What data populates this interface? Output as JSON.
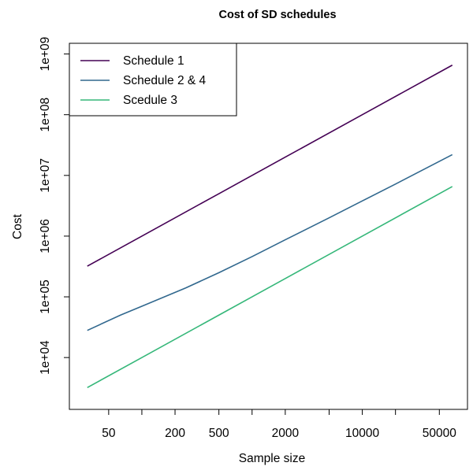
{
  "chart_data": {
    "type": "line",
    "title": "Cost of SD schedules",
    "xlabel": "Sample size",
    "ylabel": "Cost",
    "xscale": "log",
    "yscale": "log",
    "xlim": [
      22,
      90000
    ],
    "ylim": [
      1400,
      1500000000
    ],
    "x_ticks": [
      50,
      100,
      200,
      500,
      1000,
      2000,
      5000,
      10000,
      20000,
      50000
    ],
    "x_tick_labels": [
      "50",
      "",
      "200",
      "500",
      "",
      "2000",
      "",
      "10000",
      "",
      "50000"
    ],
    "y_ticks": [
      10000,
      100000,
      1000000,
      10000000,
      100000000,
      1000000000
    ],
    "y_tick_labels": [
      "1e+04",
      "1e+05",
      "1e+06",
      "1e+07",
      "1e+08",
      "1e+09"
    ],
    "legend": "top-left",
    "grid": false,
    "series": [
      {
        "name": "Schedule 1",
        "color": "#440154",
        "x": [
          32,
          100,
          500,
          2000,
          10000,
          65536
        ],
        "y": [
          320000,
          1000000,
          5000000,
          20000000,
          100000000,
          655000000
        ]
      },
      {
        "name": "Schedule 2 & 4",
        "color": "#31688e",
        "x": [
          32,
          64,
          100,
          250,
          500,
          1000,
          2000,
          5000,
          10000,
          20000,
          65536
        ],
        "y": [
          28000,
          50000,
          70000,
          140000,
          250000,
          460000,
          870000,
          2000000,
          3800000,
          7200000,
          22000000
        ]
      },
      {
        "name": "Scedule 3",
        "color": "#35b779",
        "x": [
          32,
          100,
          500,
          2000,
          10000,
          65536
        ],
        "y": [
          3200,
          10000,
          50000,
          200000,
          1000000,
          6550000
        ]
      }
    ]
  }
}
